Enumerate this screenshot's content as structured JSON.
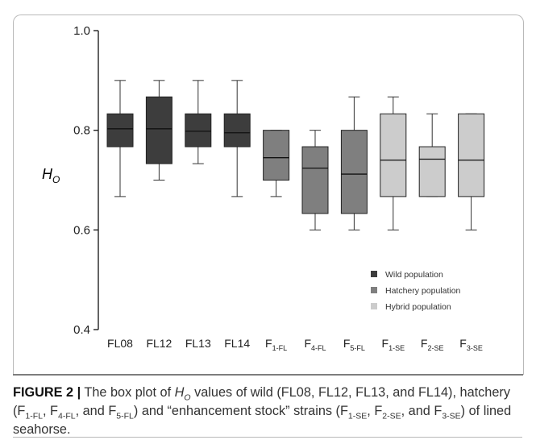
{
  "chart_data": {
    "type": "box",
    "ylabel": "H",
    "ylabel_sub": "O",
    "ylim": [
      0.4,
      1.0
    ],
    "yticks": [
      "0.4",
      "0.6",
      "0.8",
      "1.0"
    ],
    "categories": [
      {
        "main": "FL08",
        "sub": ""
      },
      {
        "main": "FL12",
        "sub": ""
      },
      {
        "main": "FL13",
        "sub": ""
      },
      {
        "main": "FL14",
        "sub": ""
      },
      {
        "main": "F",
        "sub": "1-FL"
      },
      {
        "main": "F",
        "sub": "4-FL"
      },
      {
        "main": "F",
        "sub": "5-FL"
      },
      {
        "main": "F",
        "sub": "1-SE"
      },
      {
        "main": "F",
        "sub": "2-SE"
      },
      {
        "main": "F",
        "sub": "3-SE"
      }
    ],
    "boxes": [
      {
        "group": 0,
        "min": 0.667,
        "q1": 0.767,
        "median": 0.803,
        "q3": 0.833,
        "max": 0.9
      },
      {
        "group": 0,
        "min": 0.7,
        "q1": 0.733,
        "median": 0.803,
        "q3": 0.867,
        "max": 0.9
      },
      {
        "group": 0,
        "min": 0.733,
        "q1": 0.767,
        "median": 0.798,
        "q3": 0.833,
        "max": 0.9
      },
      {
        "group": 0,
        "min": 0.667,
        "q1": 0.767,
        "median": 0.795,
        "q3": 0.833,
        "max": 0.9
      },
      {
        "group": 1,
        "min": 0.667,
        "q1": 0.7,
        "median": 0.745,
        "q3": 0.8,
        "max": 0.8
      },
      {
        "group": 1,
        "min": 0.6,
        "q1": 0.633,
        "median": 0.724,
        "q3": 0.767,
        "max": 0.8
      },
      {
        "group": 1,
        "min": 0.6,
        "q1": 0.633,
        "median": 0.712,
        "q3": 0.8,
        "max": 0.867
      },
      {
        "group": 2,
        "min": 0.6,
        "q1": 0.667,
        "median": 0.74,
        "q3": 0.833,
        "max": 0.867
      },
      {
        "group": 2,
        "min": 0.667,
        "q1": 0.667,
        "median": 0.742,
        "q3": 0.767,
        "max": 0.833
      },
      {
        "group": 2,
        "min": 0.6,
        "q1": 0.667,
        "median": 0.74,
        "q3": 0.833,
        "max": 0.833
      }
    ],
    "legend": [
      {
        "label": "Wild population",
        "color": "#3d3d3d"
      },
      {
        "label": "Hatchery population",
        "color": "#7f7f7f"
      },
      {
        "label": "Hybrid population",
        "color": "#cccccc"
      }
    ],
    "legend_position": "bottom-right",
    "grid": false
  },
  "caption": {
    "label": "FIGURE 2 |",
    "p1": " The box plot of ",
    "ho_main": "H",
    "ho_sub": "O",
    "p2": " values of wild (FL08, FL12, FL13, and FL14), hatchery (",
    "h1_main": "F",
    "h1_sub": "1-FL",
    "sep1": ", ",
    "h2_main": "F",
    "h2_sub": "4-FL",
    "sep2": ", and ",
    "h3_main": "F",
    "h3_sub": "5-FL",
    "p3": ") and “enhancement stock” strains (",
    "e1_main": "F",
    "e1_sub": "1-SE",
    "sep3": ", ",
    "e2_main": "F",
    "e2_sub": "2-SE",
    "sep4": ", and ",
    "e3_main": "F",
    "e3_sub": "3-SE",
    "p4": ") of lined seahorse."
  }
}
